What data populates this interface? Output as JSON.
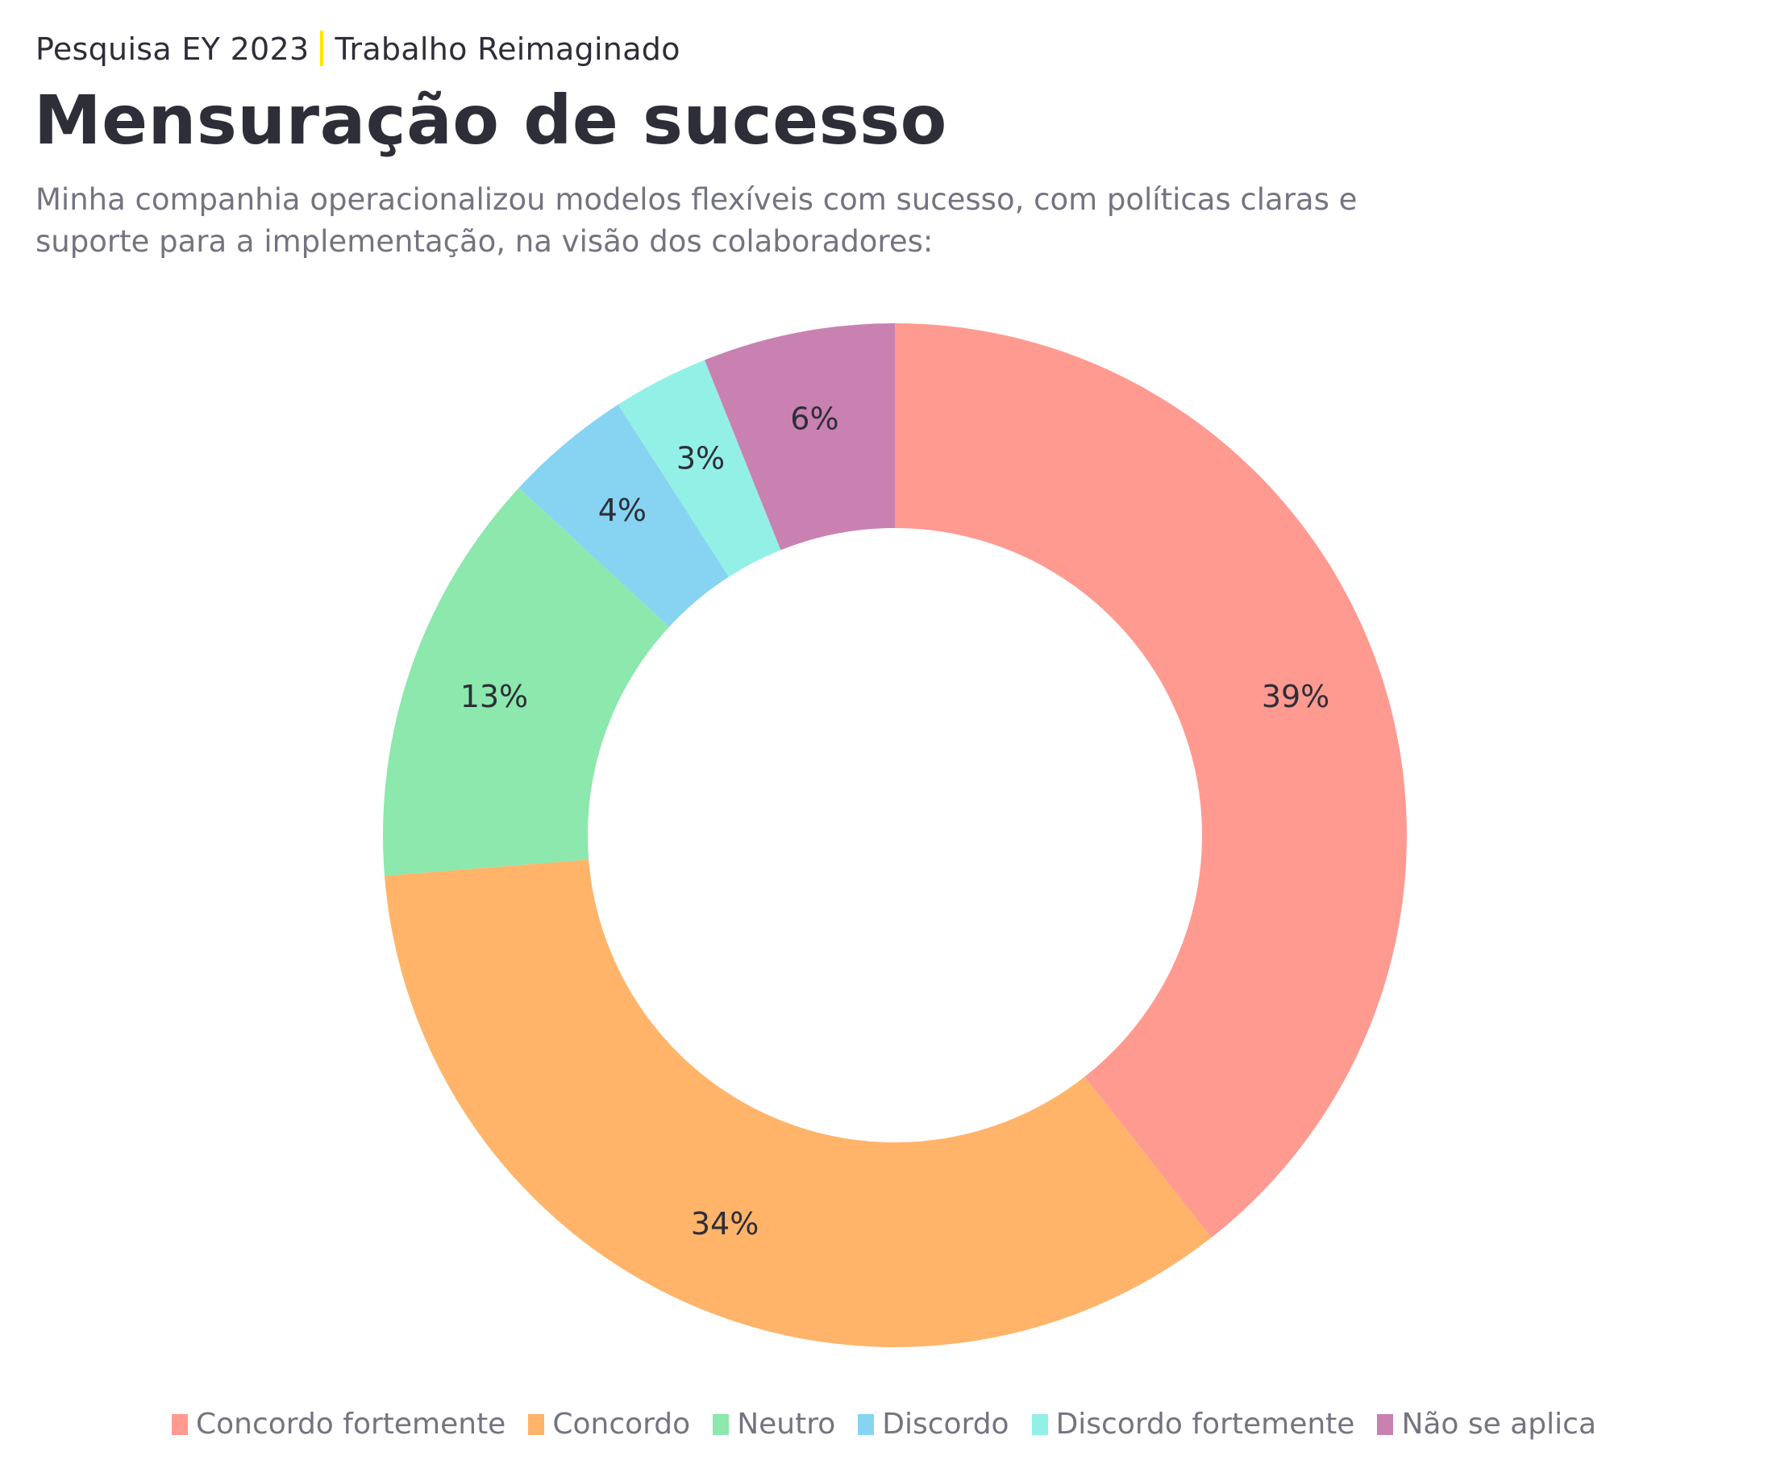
{
  "header": {
    "kicker_left": "Pesquisa EY 2023",
    "kicker_right": "Trabalho Reimaginado",
    "accent_color": "#ffe600",
    "title": "Mensuração de sucesso",
    "subtitle": "Minha companhia operacionalizou modelos flexíveis com sucesso, com políticas claras e suporte para a implementação, na visão dos colaboradores:"
  },
  "chart_data": {
    "type": "pie",
    "donut": true,
    "title": "Mensuração de sucesso",
    "categories": [
      "Concordo fortemente",
      "Concordo",
      "Neutro",
      "Discordo",
      "Discordo fortemente",
      "Não se aplica"
    ],
    "values": [
      39,
      34,
      13,
      4,
      3,
      6
    ],
    "labels": [
      "39%",
      "34%",
      "13%",
      "4%",
      "3%",
      "6%"
    ],
    "colors": [
      "#ff9a91",
      "#ffb46a",
      "#8ce8ad",
      "#87d3f2",
      "#93f0e6",
      "#c981b2"
    ],
    "legend_position": "bottom"
  }
}
